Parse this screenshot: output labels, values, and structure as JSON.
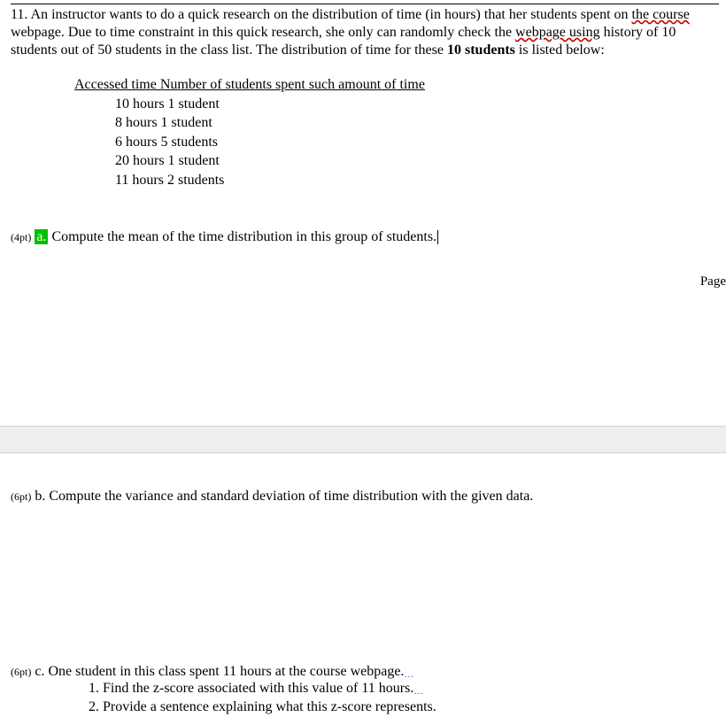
{
  "question_number": "11.",
  "intro_parts": {
    "p1": "An instructor wants to do a quick research on the distribution of time (in hours) that her students spent on ",
    "wavy1": "the course",
    "p2": " webpage. Due to time constraint in this quick research, she only can randomly check the ",
    "wavy2": "webpage using",
    "p3": " history of 10 students out of 50 students in the class list. The distribution of time for these ",
    "bold1": "10 students",
    "p4": " is listed below:"
  },
  "data_header": "Accessed time Number of students spent such amount of time",
  "data_rows": [
    "10 hours 1 student",
    "8 hours 1 student",
    "6 hours 5 students",
    "20 hours 1 student",
    "11 hours 2 students"
  ],
  "part_a": {
    "pts": "(4pt)",
    "letter": "a.",
    "highlight_bg": "#00c000",
    "text": " Compute the mean of the time distribution in this group of students."
  },
  "page_label": "Page ",
  "part_b": {
    "pts": "(6pt)",
    "letter": " b. ",
    "text": "Compute the variance and standard deviation of time distribution with the given data."
  },
  "part_c": {
    "pts": "(6pt)",
    "letter": " c. ",
    "text": "One student in this class spent 11 hours at the course webpage.",
    "sub1": "1. Find the z-score associated with this value of 11 hours.",
    "sub2": "2. Provide a sentence explaining what this z-score represents."
  },
  "colors": {
    "page_bg": "#ffffff",
    "gap_bg": "#eceeef",
    "text": "#000000",
    "wavy_underline": "#c00000",
    "dots": "#2e5fd8"
  }
}
